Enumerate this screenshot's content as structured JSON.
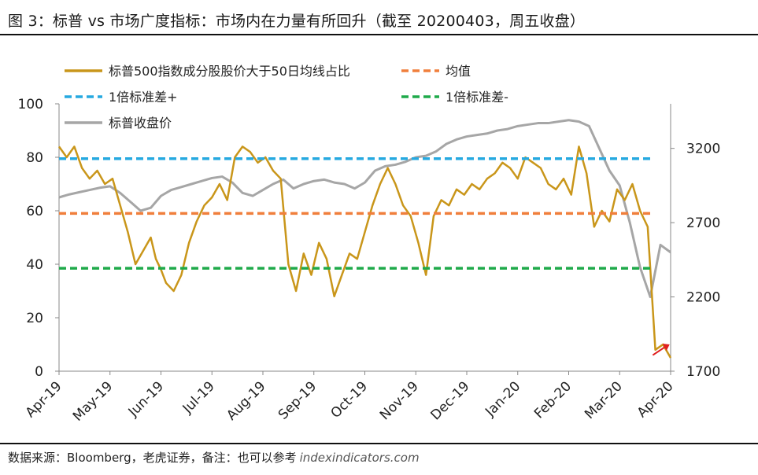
{
  "header": {
    "title": "图 3：标普 vs 市场广度指标：市场内在力量有所回升（截至 20200403，周五收盘）"
  },
  "footer": {
    "source": "数据来源：Bloomberg，老虎证券，备注：也可以参考",
    "url": "indexindicators.com"
  },
  "colors": {
    "breadth": "#c9961a",
    "mean": "#f07f3c",
    "sd_plus": "#26a9e0",
    "sd_minus": "#1faa4a",
    "price": "#a6a6a6",
    "arrow": "#e02020"
  },
  "chart_data": {
    "type": "line",
    "x_labels": [
      "Apr-19",
      "May-19",
      "Jun-19",
      "Jul-19",
      "Aug-19",
      "Sep-19",
      "Oct-19",
      "Nov-19",
      "Dec-19",
      "Jan-20",
      "Feb-20",
      "Mar-20",
      "Apr-20"
    ],
    "y_left": {
      "ticks": [
        "0",
        "20",
        "40",
        "60",
        "80",
        "100"
      ],
      "range": [
        0,
        100
      ]
    },
    "y_right": {
      "ticks": [
        "1700",
        "2200",
        "2700",
        "3200"
      ],
      "range": [
        1700,
        3500
      ]
    },
    "legend": {
      "breadth": "标普500指数成分股股价大于50日均线占比",
      "mean": "均值",
      "sd_plus": "1倍标准差+",
      "sd_minus": "1倍标准差-",
      "price": "标普收盘价"
    },
    "reference_lines": {
      "mean": 59,
      "sd_plus": 79.5,
      "sd_minus": 38.5
    },
    "series": [
      {
        "name": "标普500指数成分股股价大于50日均线占比",
        "axis": "left",
        "x": [
          0,
          0.15,
          0.3,
          0.45,
          0.6,
          0.75,
          0.9,
          1.05,
          1.2,
          1.35,
          1.5,
          1.65,
          1.8,
          1.9,
          2.0,
          2.1,
          2.25,
          2.4,
          2.55,
          2.7,
          2.85,
          3.0,
          3.15,
          3.3,
          3.45,
          3.6,
          3.75,
          3.9,
          4.05,
          4.2,
          4.35,
          4.5,
          4.65,
          4.8,
          4.95,
          5.1,
          5.25,
          5.4,
          5.55,
          5.7,
          5.85,
          6.0,
          6.15,
          6.3,
          6.45,
          6.6,
          6.75,
          6.9,
          7.05,
          7.2,
          7.35,
          7.5,
          7.65,
          7.8,
          7.95,
          8.1,
          8.25,
          8.4,
          8.55,
          8.7,
          8.85,
          9.0,
          9.15,
          9.3,
          9.45,
          9.6,
          9.75,
          9.9,
          10.05,
          10.2,
          10.35,
          10.5,
          10.65,
          10.8,
          10.95,
          11.1,
          11.25,
          11.4,
          11.55,
          11.7,
          11.85,
          12.0
        ],
        "y": [
          84,
          80,
          84,
          76,
          72,
          75,
          70,
          72,
          62,
          52,
          40,
          45,
          50,
          42,
          38,
          33,
          30,
          36,
          48,
          56,
          62,
          65,
          70,
          64,
          80,
          84,
          82,
          78,
          80,
          75,
          72,
          40,
          30,
          44,
          36,
          48,
          42,
          28,
          36,
          44,
          42,
          52,
          62,
          70,
          76,
          70,
          62,
          58,
          48,
          36,
          58,
          64,
          62,
          68,
          66,
          70,
          68,
          72,
          74,
          78,
          76,
          72,
          80,
          78,
          76,
          70,
          68,
          72,
          66,
          84,
          74,
          54,
          60,
          56,
          68,
          64,
          70,
          60,
          54,
          8,
          10,
          5
        ],
        "note": "approximate weekly-resolution trace; x is month index"
      },
      {
        "name": "标普收盘价",
        "axis": "right",
        "x": [
          0,
          0.2,
          0.4,
          0.6,
          0.8,
          1.0,
          1.2,
          1.4,
          1.6,
          1.8,
          2.0,
          2.2,
          2.4,
          2.6,
          2.8,
          3.0,
          3.2,
          3.4,
          3.6,
          3.8,
          4.0,
          4.2,
          4.4,
          4.6,
          4.8,
          5.0,
          5.2,
          5.4,
          5.6,
          5.8,
          6.0,
          6.2,
          6.4,
          6.6,
          6.8,
          7.0,
          7.2,
          7.4,
          7.6,
          7.8,
          8.0,
          8.2,
          8.4,
          8.6,
          8.8,
          9.0,
          9.2,
          9.4,
          9.6,
          9.8,
          10.0,
          10.2,
          10.4,
          10.6,
          10.8,
          11.0,
          11.2,
          11.4,
          11.6,
          11.8,
          12.0
        ],
        "y": [
          2870,
          2890,
          2905,
          2920,
          2935,
          2945,
          2900,
          2840,
          2780,
          2800,
          2880,
          2920,
          2940,
          2960,
          2980,
          3000,
          3010,
          2970,
          2900,
          2880,
          2920,
          2960,
          2990,
          2930,
          2960,
          2980,
          2990,
          2970,
          2960,
          2930,
          2970,
          3050,
          3080,
          3090,
          3110,
          3140,
          3150,
          3180,
          3230,
          3260,
          3280,
          3290,
          3300,
          3320,
          3330,
          3350,
          3360,
          3370,
          3370,
          3380,
          3390,
          3380,
          3350,
          3200,
          3050,
          2950,
          2700,
          2400,
          2200,
          2550,
          2500
        ],
        "note": "approximate weekly-resolution trace; x is month index"
      }
    ]
  }
}
